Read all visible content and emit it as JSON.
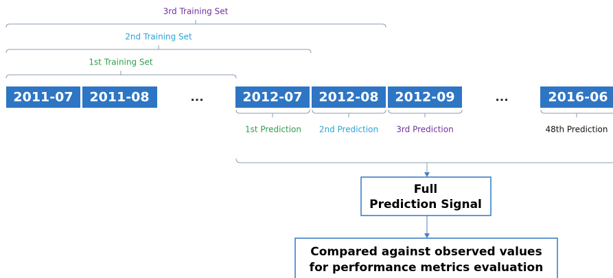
{
  "training_sets": [
    "3rd Training Set",
    "2nd Training Set",
    "1st Training Set"
  ],
  "months": [
    "2011-07",
    "2011-08",
    "2012-07",
    "2012-08",
    "2012-09",
    "2016-06"
  ],
  "ellipses": [
    "...",
    "..."
  ],
  "predictions": [
    "1st Prediction",
    "2nd Prediction",
    "3rd Prediction",
    "48th Prediction"
  ],
  "signal_box": {
    "lines": [
      "Full",
      "Prediction Signal"
    ]
  },
  "compare_box": {
    "lines": [
      "Compared against observed values",
      "for performance metrics evaluation"
    ]
  }
}
